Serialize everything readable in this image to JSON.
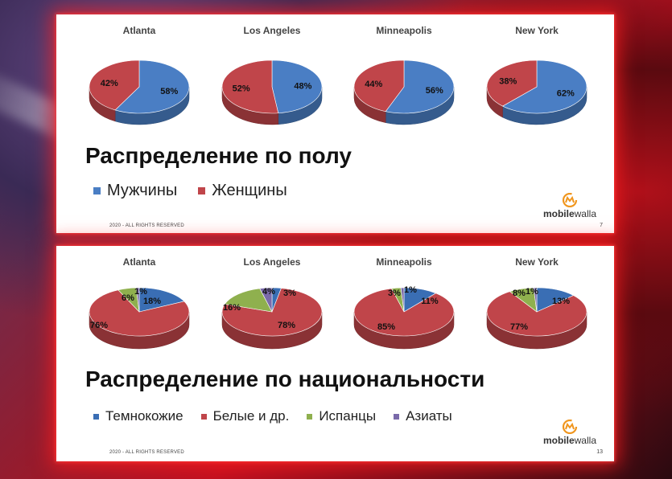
{
  "slides": [
    {
      "title": "Распределение по полу",
      "legend": [
        {
          "label": "Мужчины",
          "color": "#4a7ec4"
        },
        {
          "label": "Женщины",
          "color": "#c0454a"
        }
      ],
      "footer": "2020 - ALL RIGHTS RESERVED",
      "page": "7",
      "logo": {
        "bold": "mobile",
        "regular": "walla",
        "color": "#f0961e"
      }
    },
    {
      "title": "Распределение по национальности",
      "legend": [
        {
          "label": "Темнокожие",
          "color": "#3a6eb4"
        },
        {
          "label": "Белые и др.",
          "color": "#c0454a"
        },
        {
          "label": "Испанцы",
          "color": "#8fb04e"
        },
        {
          "label": "Азиаты",
          "color": "#7a6aaa"
        }
      ],
      "footer": "2020 - ALL RIGHTS RESERVED",
      "page": "13",
      "logo": {
        "bold": "mobile",
        "regular": "walla",
        "color": "#f0961e"
      }
    }
  ],
  "chart_data": [
    {
      "type": "pie",
      "title": "Atlanta",
      "slices": [
        {
          "name": "Мужчины",
          "value": 58,
          "label": "58%",
          "color": "#4a7ec4"
        },
        {
          "name": "Женщины",
          "value": 42,
          "label": "42%",
          "color": "#c0454a"
        }
      ]
    },
    {
      "type": "pie",
      "title": "Los Angeles",
      "slices": [
        {
          "name": "Мужчины",
          "value": 48,
          "label": "48%",
          "color": "#4a7ec4"
        },
        {
          "name": "Женщины",
          "value": 52,
          "label": "52%",
          "color": "#c0454a"
        }
      ]
    },
    {
      "type": "pie",
      "title": "Minneapolis",
      "slices": [
        {
          "name": "Мужчины",
          "value": 56,
          "label": "56%",
          "color": "#4a7ec4"
        },
        {
          "name": "Женщины",
          "value": 44,
          "label": "44%",
          "color": "#c0454a"
        }
      ]
    },
    {
      "type": "pie",
      "title": "New York",
      "slices": [
        {
          "name": "Мужчины",
          "value": 62,
          "label": "62%",
          "color": "#4a7ec4"
        },
        {
          "name": "Женщины",
          "value": 38,
          "label": "38%",
          "color": "#c0454a"
        }
      ]
    },
    {
      "type": "pie",
      "title": "Atlanta",
      "slices": [
        {
          "name": "Темнокожие",
          "value": 18,
          "label": "18%",
          "color": "#3a6eb4"
        },
        {
          "name": "Белые и др.",
          "value": 76,
          "label": "76%",
          "color": "#c0454a"
        },
        {
          "name": "Испанцы",
          "value": 6,
          "label": "6%",
          "color": "#8fb04e"
        },
        {
          "name": "Азиаты",
          "value": 1,
          "label": "1%",
          "color": "#7a6aaa"
        }
      ]
    },
    {
      "type": "pie",
      "title": "Los Angeles",
      "slices": [
        {
          "name": "Темнокожие",
          "value": 3,
          "label": "3%",
          "color": "#3a6eb4"
        },
        {
          "name": "Белые и др.",
          "value": 78,
          "label": "78%",
          "color": "#c0454a"
        },
        {
          "name": "Испанцы",
          "value": 16,
          "label": "16%",
          "color": "#8fb04e"
        },
        {
          "name": "Азиаты",
          "value": 4,
          "label": "4%",
          "color": "#7a6aaa"
        }
      ]
    },
    {
      "type": "pie",
      "title": "Minneapolis",
      "slices": [
        {
          "name": "Темнокожие",
          "value": 11,
          "label": "11%",
          "color": "#3a6eb4"
        },
        {
          "name": "Белые и др.",
          "value": 85,
          "label": "85%",
          "color": "#c0454a"
        },
        {
          "name": "Испанцы",
          "value": 3,
          "label": "3%",
          "color": "#8fb04e"
        },
        {
          "name": "Азиаты",
          "value": 1,
          "label": "1%",
          "color": "#7a6aaa"
        }
      ]
    },
    {
      "type": "pie",
      "title": "New York",
      "slices": [
        {
          "name": "Темнокожие",
          "value": 13,
          "label": "13%",
          "color": "#3a6eb4"
        },
        {
          "name": "Белые и др.",
          "value": 77,
          "label": "77%",
          "color": "#c0454a"
        },
        {
          "name": "Испанцы",
          "value": 8,
          "label": "8%",
          "color": "#8fb04e"
        },
        {
          "name": "Азиаты",
          "value": 1,
          "label": "1%",
          "color": "#7a6aaa"
        }
      ]
    }
  ]
}
